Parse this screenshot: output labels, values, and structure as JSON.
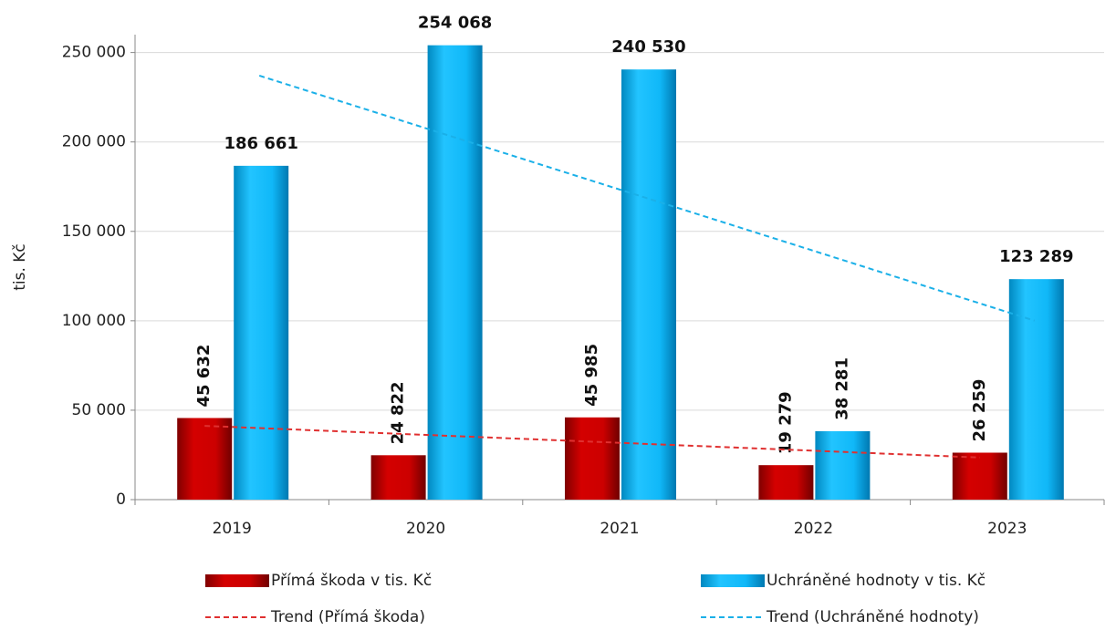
{
  "chart_data": {
    "type": "bar",
    "y_label": "tis. Kč",
    "categories": [
      "2019",
      "2020",
      "2021",
      "2022",
      "2023"
    ],
    "series": [
      {
        "name": "Přímá škoda v tis. Kč",
        "color": "#cc0000",
        "values": [
          45632,
          24822,
          45985,
          19279,
          26259
        ],
        "value_labels": [
          "45 632",
          "24 822",
          "45 985",
          "19 279",
          "26 259"
        ]
      },
      {
        "name": "Uchráněné hodnoty v tis. Kč",
        "color": "#00b0f0",
        "values": [
          186661,
          254068,
          240530,
          38281,
          123289
        ],
        "value_labels": [
          "186 661",
          "254 068",
          "240 530",
          "38 281",
          "123 289"
        ]
      },
      {
        "name": "Trend (Přímá škoda)",
        "type": "trend",
        "color": "#e03030",
        "values": [
          41253,
          36824,
          32395,
          27967,
          23538
        ]
      },
      {
        "name": "Trend (Uchráněné hodnoty)",
        "type": "trend",
        "color": "#1ab0e8",
        "values": [
          237072,
          202819,
          168566,
          134313,
          100060
        ]
      }
    ],
    "ylim": [
      0,
      260000
    ],
    "yticks": [
      0,
      {
        "value": 50000,
        "label": "50 000"
      },
      {
        "value": 100000,
        "label": "100 000"
      },
      {
        "value": 150000,
        "label": "150 000"
      },
      {
        "value": 200000,
        "label": "200 000"
      },
      {
        "value": 250000,
        "label": "250 000"
      }
    ],
    "grid": true
  }
}
